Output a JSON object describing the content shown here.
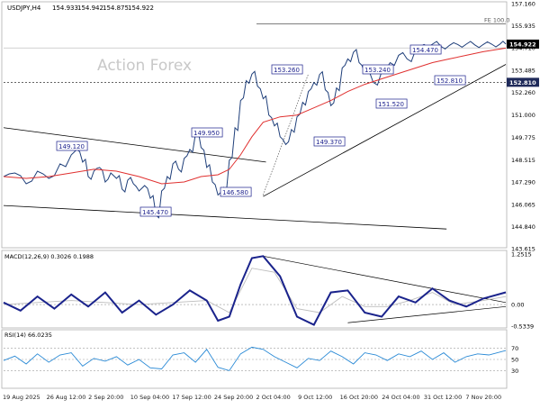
{
  "chart_data": [
    {
      "type": "line",
      "title": "USDJPY,H4",
      "ohlc": {
        "open": "154.933",
        "high": "154.942",
        "low": "154.875",
        "close": "154.922"
      },
      "watermark": "Action Forex",
      "y_ticks": [
        "157.160",
        "155.935",
        "154.710",
        "153.485",
        "152.260",
        "151.000",
        "149.775",
        "148.515",
        "147.290",
        "146.065",
        "144.840",
        "143.615"
      ],
      "ylim": [
        143.615,
        157.16
      ],
      "x_labels": [
        "19 Aug 2025",
        "26 Aug 12:00",
        "2 Sep 20:00",
        "10 Sep 04:00",
        "17 Sep 12:00",
        "24 Sep 20:00",
        "2 Oct 04:00",
        "9 Oct 12:00",
        "16 Oct 20:00",
        "24 Oct 04:00",
        "31 Oct 12:00",
        "7 Nov 20:00"
      ],
      "series": [
        {
          "name": "USDJPY",
          "x": [
            0,
            8,
            16,
            24,
            32,
            40,
            48,
            52,
            56,
            60,
            64,
            68,
            72,
            76,
            80,
            84,
            88,
            92,
            96,
            100,
            104,
            108,
            112,
            116,
            120,
            124,
            128,
            132,
            136,
            140,
            144,
            148,
            152,
            156,
            160,
            164,
            168,
            172,
            176,
            180,
            184,
            188,
            192,
            196,
            200,
            204,
            208,
            212,
            216,
            220,
            224,
            228,
            232,
            236,
            240,
            244,
            248,
            252,
            256,
            262,
            268,
            274,
            280,
            286,
            292,
            298,
            304,
            310,
            316,
            322,
            328,
            334,
            340,
            346,
            352,
            356
          ],
          "values": [
            147.6,
            147.8,
            147.2,
            147.9,
            147.5,
            148.3,
            148.8,
            149.12,
            148.4,
            147.6,
            147.9,
            148.1,
            147.3,
            147.8,
            147.5,
            146.9,
            147.4,
            147.2,
            146.8,
            147.1,
            146.4,
            145.47,
            146.8,
            147.6,
            148.3,
            148.0,
            148.6,
            149.1,
            149.95,
            149.2,
            148.1,
            147.3,
            146.58,
            147.0,
            148.5,
            150.3,
            151.8,
            152.9,
            153.26,
            152.6,
            151.9,
            151.0,
            150.4,
            149.8,
            149.37,
            150.2,
            150.9,
            151.7,
            152.3,
            152.8,
            153.24,
            152.4,
            151.52,
            152.5,
            153.6,
            154.1,
            154.47,
            153.9,
            153.3,
            152.81,
            153.4,
            153.9,
            154.3,
            154.1,
            154.6,
            154.9,
            154.92,
            154.8,
            154.85,
            154.9,
            154.92,
            154.88,
            154.9,
            154.92,
            154.93,
            154.922
          ]
        },
        {
          "name": "MA",
          "x": [
            0,
            16,
            32,
            48,
            64,
            80,
            96,
            112,
            128,
            140,
            152,
            160,
            168,
            176,
            184,
            196,
            208,
            220,
            232,
            244,
            256,
            268,
            280,
            292,
            304,
            316,
            328,
            340,
            356
          ],
          "values": [
            147.6,
            147.5,
            147.6,
            147.8,
            148.0,
            147.9,
            147.6,
            147.2,
            147.3,
            147.6,
            147.7,
            148.0,
            148.8,
            149.8,
            150.6,
            150.9,
            151.0,
            151.4,
            151.8,
            152.3,
            152.7,
            153.0,
            153.3,
            153.6,
            153.9,
            154.1,
            154.3,
            154.5,
            154.7
          ]
        }
      ],
      "annotations": [
        "149.120",
        "149.950",
        "153.260",
        "153.240",
        "154.470",
        "152.810",
        "151.520",
        "149.370",
        "146.580",
        "145.470"
      ],
      "price_tag": "154.922",
      "level_tag": "152.810",
      "fe_label": "FE 100.0"
    },
    {
      "type": "line",
      "title": "MACD(12,26,9) 0.3026 0.1988",
      "y_ticks": [
        "1.2515",
        "0.00",
        "-0.5339"
      ],
      "ylim": [
        -0.5339,
        1.2515
      ],
      "series": [
        {
          "name": "MACD",
          "x": [
            0,
            12,
            24,
            36,
            48,
            60,
            72,
            84,
            96,
            108,
            120,
            132,
            144,
            152,
            160,
            168,
            176,
            184,
            196,
            208,
            220,
            232,
            244,
            256,
            268,
            280,
            292,
            304,
            316,
            328,
            340,
            356
          ],
          "values": [
            0.05,
            -0.15,
            0.2,
            -0.1,
            0.25,
            -0.05,
            0.3,
            -0.2,
            0.1,
            -0.25,
            0.0,
            0.35,
            0.1,
            -0.4,
            -0.3,
            0.5,
            1.15,
            1.2,
            0.7,
            -0.3,
            -0.5,
            0.3,
            0.35,
            -0.2,
            -0.3,
            0.2,
            0.05,
            0.4,
            0.1,
            -0.05,
            0.15,
            0.3026
          ]
        },
        {
          "name": "Signal",
          "x": [
            0,
            24,
            48,
            72,
            96,
            120,
            144,
            160,
            176,
            192,
            208,
            224,
            240,
            256,
            272,
            288,
            304,
            320,
            340,
            356
          ],
          "values": [
            0.0,
            0.05,
            0.1,
            0.05,
            0.0,
            0.05,
            0.1,
            -0.2,
            0.9,
            0.8,
            -0.1,
            -0.2,
            0.2,
            -0.05,
            -0.05,
            0.1,
            0.3,
            0.0,
            0.1,
            0.1988
          ]
        }
      ]
    },
    {
      "type": "line",
      "title": "RSI(14) 66.0235",
      "y_ticks": [
        "70",
        "50",
        "30"
      ],
      "ylim": [
        0,
        100
      ],
      "series": [
        {
          "name": "RSI",
          "x": [
            0,
            8,
            16,
            24,
            32,
            40,
            48,
            56,
            64,
            72,
            80,
            88,
            96,
            104,
            112,
            120,
            128,
            136,
            144,
            152,
            160,
            168,
            176,
            184,
            192,
            200,
            208,
            216,
            224,
            232,
            240,
            248,
            256,
            264,
            272,
            280,
            288,
            296,
            304,
            312,
            320,
            328,
            336,
            344,
            356
          ],
          "values": [
            48,
            56,
            42,
            60,
            45,
            58,
            62,
            38,
            52,
            47,
            55,
            40,
            50,
            35,
            33,
            58,
            62,
            45,
            68,
            36,
            30,
            60,
            72,
            68,
            55,
            45,
            35,
            52,
            48,
            65,
            55,
            42,
            62,
            58,
            48,
            60,
            55,
            65,
            50,
            62,
            45,
            55,
            60,
            58,
            66.0235
          ]
        }
      ]
    }
  ]
}
